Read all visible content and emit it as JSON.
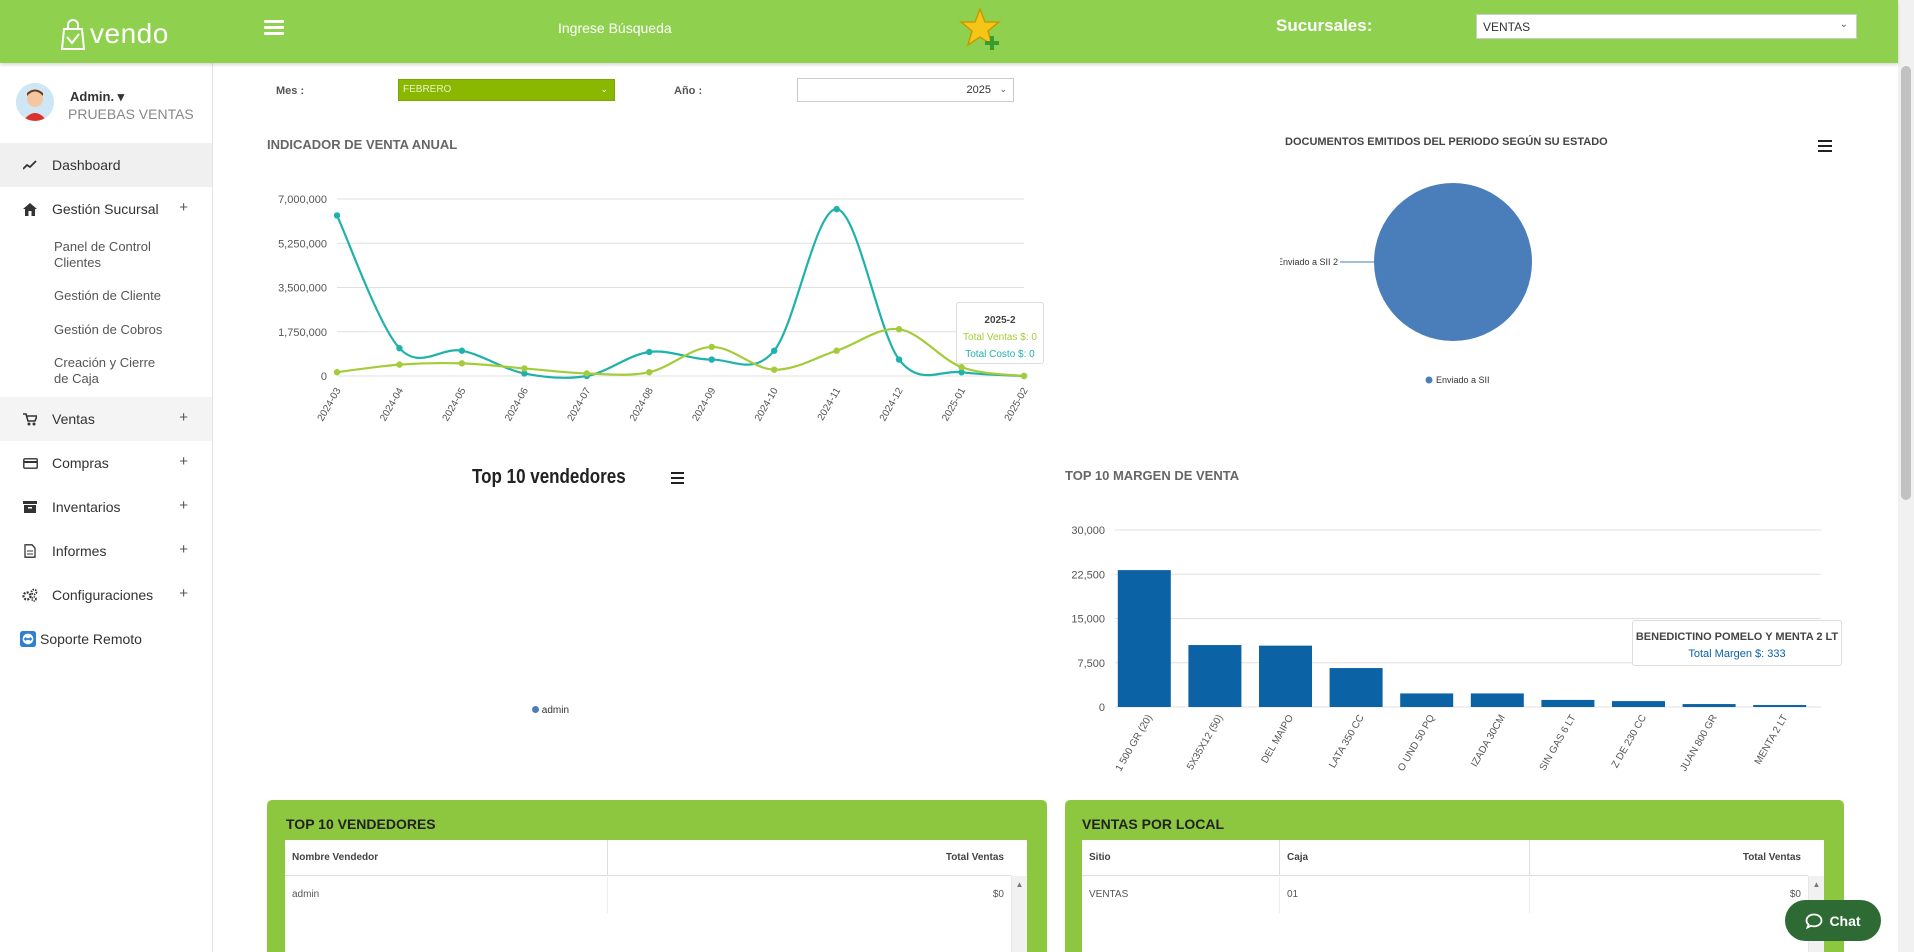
{
  "header": {
    "logo_text": "vendo",
    "search_label": "Ingrese Búsqueda",
    "branch_label": "Sucursales:",
    "branch_value": "VENTAS"
  },
  "sidebar": {
    "user_name": "Admin.",
    "company": "PRUEBAS VENTAS",
    "items": [
      {
        "label": "Dashboard",
        "icon": "trend-icon"
      },
      {
        "label": "Gestión Sucursal",
        "icon": "home-icon",
        "expand": "+"
      },
      {
        "label": "Ventas",
        "icon": "cart-icon",
        "expand": "+"
      },
      {
        "label": "Compras",
        "icon": "card-icon",
        "expand": "+"
      },
      {
        "label": "Inventarios",
        "icon": "box-icon",
        "expand": "+"
      },
      {
        "label": "Informes",
        "icon": "file-icon",
        "expand": "+"
      },
      {
        "label": "Configuraciones",
        "icon": "gears-icon",
        "expand": "+"
      },
      {
        "label": "Soporte Remoto",
        "icon": "teamviewer-icon"
      }
    ],
    "subitems": [
      "Panel de Control Clientes",
      "Gestión de Cliente",
      "Gestión de Cobros",
      "Creación y Cierre de Caja"
    ]
  },
  "filters": {
    "mes_label": "Mes :",
    "mes_value": "FEBRERO",
    "anio_label": "Año :",
    "anio_value": "2025"
  },
  "colors": {
    "brand": "#8fd14f",
    "teal": "#1fb2aa",
    "lime": "#a4cc39",
    "bar": "#0b62a4",
    "pie": "#4a7ebb"
  },
  "tooltips": {
    "line": {
      "title": "2025-2",
      "ventas": "Total Ventas $: 0",
      "costo": "Total Costo $: 0"
    },
    "bar": {
      "title": "BENEDICTINO POMELO Y MENTA 2 LT",
      "value": "Total Margen $: 333"
    }
  },
  "top10_chart": {
    "title": "Top 10 vendedores",
    "legend": "admin"
  },
  "chart_data": [
    {
      "type": "line",
      "title": "INDICADOR DE VENTA ANUAL",
      "categories": [
        "2024-03",
        "2024-04",
        "2024-05",
        "2024-06",
        "2024-07",
        "2024-08",
        "2024-09",
        "2024-10",
        "2024-11",
        "2024-12",
        "2025-01",
        "2025-02"
      ],
      "y_ticks": [
        "7,000,000",
        "5,250,000",
        "3,500,000",
        "1,750,000",
        "0"
      ],
      "ylim": [
        0,
        7000000
      ],
      "series": [
        {
          "name": "Total Costo",
          "values": [
            6350000,
            1100000,
            1000000,
            100000,
            0,
            950000,
            650000,
            1000000,
            6600000,
            650000,
            150000,
            0
          ]
        },
        {
          "name": "Total Ventas",
          "values": [
            150000,
            450000,
            500000,
            300000,
            100000,
            150000,
            1150000,
            250000,
            1000000,
            1850000,
            350000,
            0
          ]
        }
      ]
    },
    {
      "type": "pie",
      "title": "DOCUMENTOS EMITIDOS DEL PERIODO SEGÚN SU ESTADO",
      "slices": [
        {
          "label": "Enviado a SII",
          "value": 2
        }
      ],
      "data_label": "Enviado a SII 2",
      "legend": "Enviado a SII"
    },
    {
      "type": "bar",
      "title": "TOP 10 MARGEN DE VENTA",
      "categories": [
        "1 500 GR (20)",
        "5X35X12 (50)",
        "DEL MAIPO",
        "LATA 350 CC",
        "O UND 50 PQ",
        "IZADA 30CM",
        "SIN GAS 6 LT",
        "Z DE 230 CC",
        "JUAN 800 GR",
        "MENTA 2 LT"
      ],
      "values": [
        23200,
        10500,
        10400,
        6600,
        2300,
        2300,
        1200,
        1000,
        500,
        333
      ],
      "y_ticks": [
        "30,000",
        "22,500",
        "15,000",
        "7,500",
        "0"
      ],
      "ylim": [
        0,
        30000
      ]
    }
  ],
  "table_sellers": {
    "title": "TOP 10 VENDEDORES",
    "headers": [
      "Nombre Vendedor",
      "Total Ventas"
    ],
    "rows": [
      [
        "admin",
        "$0"
      ]
    ]
  },
  "table_locals": {
    "title": "VENTAS POR LOCAL",
    "headers": [
      "Sitio",
      "Caja",
      "Total Ventas"
    ],
    "rows": [
      [
        "VENTAS",
        "01",
        "$0"
      ]
    ]
  },
  "chat_label": "Chat"
}
